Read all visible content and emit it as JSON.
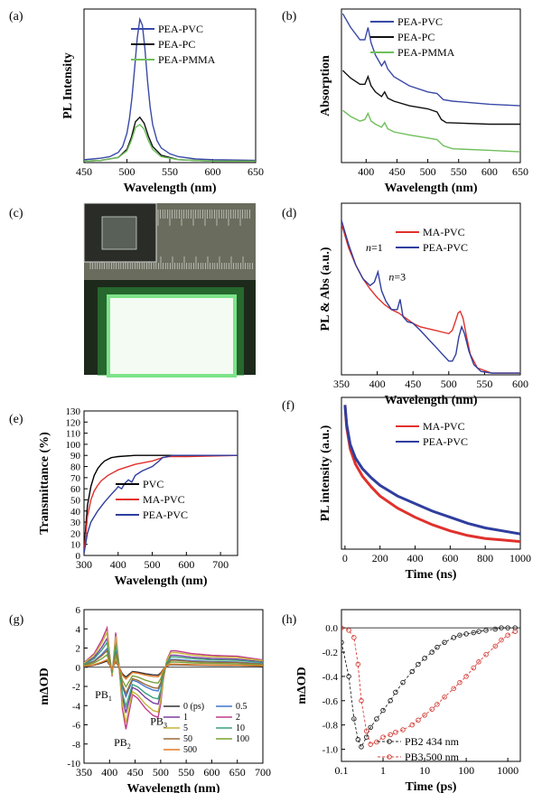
{
  "chart_data": [
    {
      "panel": "(a)",
      "type": "line",
      "xlabel": "Wavelength (nm)",
      "ylabel": "PL Intensity",
      "xlim": [
        450,
        650
      ],
      "ylim": [
        0,
        1.05
      ],
      "xticks": [
        450,
        500,
        550,
        600,
        650
      ],
      "series": [
        {
          "name": "PEA-PVC",
          "color": "#3a4aa6",
          "x": [
            450,
            460,
            470,
            480,
            490,
            495,
            500,
            503,
            506,
            509,
            512,
            515,
            518,
            521,
            524,
            527,
            530,
            535,
            540,
            550,
            560,
            580,
            600,
            650
          ],
          "y": [
            0.02,
            0.025,
            0.03,
            0.04,
            0.07,
            0.11,
            0.2,
            0.3,
            0.45,
            0.65,
            0.85,
            0.98,
            0.94,
            0.78,
            0.56,
            0.38,
            0.26,
            0.15,
            0.1,
            0.06,
            0.04,
            0.025,
            0.02,
            0.015
          ]
        },
        {
          "name": "PEA-PC",
          "color": "#111111",
          "x": [
            450,
            470,
            490,
            500,
            505,
            510,
            515,
            520,
            525,
            530,
            540,
            560,
            600,
            650
          ],
          "y": [
            0.01,
            0.015,
            0.035,
            0.09,
            0.17,
            0.28,
            0.31,
            0.27,
            0.18,
            0.11,
            0.05,
            0.02,
            0.01,
            0.01
          ]
        },
        {
          "name": "PEA-PMMA",
          "color": "#6fbf5a",
          "x": [
            450,
            470,
            490,
            500,
            505,
            510,
            515,
            520,
            525,
            530,
            540,
            560,
            600,
            650
          ],
          "y": [
            0.01,
            0.015,
            0.035,
            0.08,
            0.15,
            0.24,
            0.26,
            0.23,
            0.15,
            0.09,
            0.04,
            0.02,
            0.01,
            0.01
          ]
        }
      ]
    },
    {
      "panel": "(b)",
      "type": "line",
      "xlabel": "Wavelength (nm)",
      "ylabel": "Absorption",
      "xlim": [
        360,
        650
      ],
      "ylim": [
        0,
        1
      ],
      "xticks": [
        400,
        450,
        500,
        550,
        600,
        650
      ],
      "series": [
        {
          "name": "PEA-PVC",
          "color": "#3a4aa6",
          "x": [
            362,
            375,
            390,
            398,
            403,
            408,
            415,
            425,
            430,
            435,
            445,
            470,
            500,
            515,
            525,
            540,
            600,
            650
          ],
          "y": [
            0.97,
            0.88,
            0.8,
            0.8,
            0.88,
            0.78,
            0.7,
            0.63,
            0.66,
            0.61,
            0.56,
            0.5,
            0.46,
            0.45,
            0.41,
            0.4,
            0.38,
            0.37
          ]
        },
        {
          "name": "PEA-PC",
          "color": "#111111",
          "x": [
            362,
            375,
            390,
            398,
            403,
            408,
            415,
            425,
            430,
            435,
            445,
            470,
            500,
            515,
            522,
            530,
            600,
            650
          ],
          "y": [
            0.6,
            0.55,
            0.51,
            0.51,
            0.56,
            0.5,
            0.46,
            0.43,
            0.46,
            0.42,
            0.4,
            0.37,
            0.35,
            0.33,
            0.28,
            0.26,
            0.25,
            0.25
          ]
        },
        {
          "name": "PEA-PMMA",
          "color": "#6fbf5a",
          "x": [
            362,
            375,
            390,
            398,
            403,
            408,
            415,
            425,
            430,
            435,
            445,
            470,
            500,
            515,
            525,
            540,
            600,
            650
          ],
          "y": [
            0.34,
            0.3,
            0.27,
            0.28,
            0.32,
            0.27,
            0.25,
            0.23,
            0.26,
            0.22,
            0.2,
            0.18,
            0.16,
            0.15,
            0.11,
            0.09,
            0.08,
            0.07
          ]
        }
      ]
    },
    {
      "panel": "(d)",
      "type": "line",
      "xlabel": "Wavelength (nm)",
      "ylabel": "PL & Abs (a.u.)",
      "xlim": [
        350,
        600
      ],
      "ylim": [
        0,
        1
      ],
      "xticks": [
        350,
        400,
        450,
        500,
        550,
        600
      ],
      "annotations": [
        {
          "text": "n=1",
          "x": 396,
          "y": 0.72
        },
        {
          "text": "n=3",
          "x": 428,
          "y": 0.55
        }
      ],
      "series": [
        {
          "name": "MA-PVC",
          "color": "#e0312c",
          "x": [
            350,
            360,
            370,
            380,
            390,
            400,
            410,
            420,
            430,
            440,
            450,
            460,
            470,
            480,
            490,
            500,
            505,
            510,
            513,
            516,
            520,
            525,
            530,
            540,
            560,
            600
          ],
          "y": [
            0.88,
            0.74,
            0.64,
            0.56,
            0.5,
            0.45,
            0.41,
            0.38,
            0.36,
            0.33,
            0.3,
            0.28,
            0.27,
            0.26,
            0.25,
            0.24,
            0.26,
            0.32,
            0.36,
            0.37,
            0.33,
            0.22,
            0.12,
            0.04,
            0.01,
            0.01
          ]
        },
        {
          "name": "PEA-PVC",
          "color": "#2f3e9e",
          "x": [
            350,
            360,
            370,
            380,
            390,
            396,
            401,
            406,
            412,
            420,
            428,
            432,
            436,
            442,
            450,
            460,
            480,
            500,
            505,
            510,
            514,
            518,
            522,
            528,
            535,
            545,
            560,
            600
          ],
          "y": [
            0.9,
            0.76,
            0.64,
            0.56,
            0.52,
            0.54,
            0.6,
            0.49,
            0.43,
            0.38,
            0.38,
            0.44,
            0.34,
            0.31,
            0.3,
            0.26,
            0.17,
            0.08,
            0.08,
            0.12,
            0.22,
            0.28,
            0.24,
            0.14,
            0.06,
            0.02,
            0.01,
            0.01
          ]
        }
      ]
    },
    {
      "panel": "(e)",
      "type": "line",
      "xlabel": "Wavelength (nm)",
      "ylabel": "Transmittance (%)",
      "xlim": [
        300,
        750
      ],
      "ylim": [
        0,
        130
      ],
      "yticks": [
        0,
        10,
        20,
        30,
        40,
        50,
        60,
        70,
        80,
        90,
        100,
        110,
        120,
        130
      ],
      "xticks": [
        300,
        400,
        500,
        600,
        700
      ],
      "series": [
        {
          "name": "PVC",
          "color": "#000000",
          "x": [
            300,
            305,
            310,
            320,
            330,
            340,
            350,
            360,
            380,
            400,
            450,
            500,
            550,
            750
          ],
          "y": [
            2,
            25,
            45,
            62,
            72,
            78,
            82,
            85,
            88,
            89,
            90,
            90,
            90,
            90
          ]
        },
        {
          "name": "MA-PVC",
          "color": "#e0312c",
          "x": [
            300,
            310,
            320,
            330,
            340,
            350,
            370,
            400,
            450,
            500,
            530,
            550,
            600,
            750
          ],
          "y": [
            2,
            35,
            50,
            58,
            63,
            67,
            72,
            77,
            82,
            85,
            88,
            89,
            89,
            90
          ]
        },
        {
          "name": "PEA-PVC",
          "color": "#2f3e9e",
          "x": [
            300,
            310,
            320,
            340,
            360,
            380,
            395,
            400,
            410,
            420,
            430,
            440,
            450,
            470,
            500,
            520,
            530,
            545,
            560,
            750
          ],
          "y": [
            2,
            20,
            30,
            40,
            48,
            55,
            60,
            62,
            60,
            65,
            68,
            66,
            72,
            76,
            80,
            85,
            88,
            89,
            90,
            90
          ]
        }
      ]
    },
    {
      "panel": "(f)",
      "type": "line",
      "xlabel": "Time (ns)",
      "ylabel": "PL intensity (a.u.)",
      "xlim": [
        -20,
        1000
      ],
      "ylim": [
        0,
        1
      ],
      "xticks": [
        0,
        200,
        400,
        600,
        800,
        1000
      ],
      "series": [
        {
          "name": "MA-PVC",
          "color": "#e0312c",
          "x": [
            0,
            10,
            30,
            60,
            100,
            150,
            200,
            300,
            400,
            500,
            600,
            700,
            800,
            900,
            1000
          ],
          "y": [
            0.95,
            0.8,
            0.66,
            0.56,
            0.48,
            0.41,
            0.35,
            0.27,
            0.21,
            0.16,
            0.12,
            0.09,
            0.07,
            0.06,
            0.05
          ]
        },
        {
          "name": "PEA-PVC",
          "color": "#2f3e9e",
          "x": [
            0,
            10,
            30,
            60,
            100,
            150,
            200,
            300,
            400,
            500,
            600,
            700,
            800,
            900,
            1000
          ],
          "y": [
            0.95,
            0.82,
            0.69,
            0.6,
            0.53,
            0.47,
            0.42,
            0.35,
            0.3,
            0.25,
            0.21,
            0.17,
            0.14,
            0.12,
            0.1
          ]
        }
      ]
    },
    {
      "panel": "(g)",
      "type": "line",
      "xlabel": "Wavelength (nm)",
      "ylabel": "mΔOD",
      "xlim": [
        350,
        700
      ],
      "ylim": [
        -10,
        6
      ],
      "xticks": [
        350,
        400,
        450,
        500,
        550,
        600,
        650,
        700
      ],
      "yticks": [
        -10,
        -8,
        -6,
        -4,
        -2,
        0,
        2,
        4,
        6
      ],
      "annotations": [
        {
          "text": "PB1",
          "x": 388,
          "y": -3.2
        },
        {
          "text": "PB2",
          "x": 425,
          "y": -8.2
        },
        {
          "text": "PB3",
          "x": 496,
          "y": -6.0
        }
      ],
      "legend": [
        "0 (ps)",
        "0.5",
        "1",
        "2",
        "5",
        "10",
        "50",
        "100",
        "500"
      ],
      "series": [
        {
          "name": "0 (ps)",
          "color": "#333333",
          "scale": 0.15
        },
        {
          "name": "0.5",
          "color": "#4477cc",
          "scale": 0.45
        },
        {
          "name": "1",
          "color": "#7a3fa0",
          "scale": 0.7
        },
        {
          "name": "2",
          "color": "#c03a8a",
          "scale": 0.95
        },
        {
          "name": "5",
          "color": "#c8b43a",
          "scale": 0.85
        },
        {
          "name": "10",
          "color": "#3aa07a",
          "scale": 0.6
        },
        {
          "name": "50",
          "color": "#9a6a3a",
          "scale": 0.4
        },
        {
          "name": "100",
          "color": "#7aa03a",
          "scale": 0.3
        },
        {
          "name": "500",
          "color": "#e07a2a",
          "scale": 0.18
        }
      ],
      "base_shape": {
        "x": [
          350,
          370,
          385,
          395,
          400,
          405,
          412,
          418,
          425,
          432,
          438,
          445,
          455,
          470,
          485,
          495,
          500,
          505,
          512,
          520,
          530,
          560,
          600,
          650,
          700
        ],
        "y": [
          0.5,
          1.5,
          3.0,
          4.3,
          1.5,
          -1.0,
          3.8,
          0.5,
          -4.5,
          -6.8,
          -5.0,
          -3.0,
          -3.4,
          -4.5,
          -5.3,
          -5.5,
          -4.0,
          -1.5,
          0.8,
          1.8,
          1.8,
          1.5,
          1.3,
          1.2,
          0.8
        ]
      }
    },
    {
      "panel": "(h)",
      "type": "scatter",
      "xlabel": "Time (ps)",
      "ylabel": "mΔOD",
      "xscale": "log",
      "xlim": [
        0.1,
        2000
      ],
      "ylim": [
        -1.1,
        0.15
      ],
      "xticks": [
        0.1,
        1,
        10,
        100,
        1000
      ],
      "yticks": [
        -1.0,
        -0.8,
        -0.6,
        -0.4,
        -0.2,
        0.0
      ],
      "series": [
        {
          "name": "PB2 434 nm",
          "color": "#222222",
          "x": [
            0.1,
            0.15,
            0.2,
            0.25,
            0.3,
            0.4,
            0.5,
            0.7,
            1,
            1.5,
            2,
            3,
            5,
            7,
            10,
            15,
            20,
            30,
            50,
            70,
            100,
            150,
            200,
            300,
            500,
            700,
            1000,
            1500
          ],
          "y": [
            -0.12,
            -0.4,
            -0.75,
            -0.92,
            -0.98,
            -0.9,
            -0.82,
            -0.75,
            -0.68,
            -0.6,
            -0.53,
            -0.45,
            -0.36,
            -0.3,
            -0.25,
            -0.2,
            -0.16,
            -0.12,
            -0.08,
            -0.06,
            -0.05,
            -0.04,
            -0.03,
            -0.02,
            -0.01,
            0.0,
            0.0,
            0.0
          ]
        },
        {
          "name": "PB3 500 nm",
          "color": "#d6403a",
          "x": [
            0.1,
            0.15,
            0.2,
            0.25,
            0.3,
            0.4,
            0.5,
            0.7,
            1,
            1.5,
            2,
            3,
            5,
            7,
            10,
            15,
            20,
            30,
            50,
            70,
            100,
            150,
            200,
            300,
            500,
            700,
            1000,
            1500
          ],
          "y": [
            0.0,
            -0.02,
            -0.08,
            -0.3,
            -0.6,
            -0.85,
            -0.96,
            -0.94,
            -0.9,
            -0.88,
            -0.86,
            -0.84,
            -0.8,
            -0.76,
            -0.72,
            -0.67,
            -0.63,
            -0.57,
            -0.5,
            -0.45,
            -0.4,
            -0.33,
            -0.28,
            -0.22,
            -0.15,
            -0.1,
            -0.06,
            -0.03
          ]
        }
      ]
    }
  ],
  "photo_panel": {
    "panel": "(c)"
  }
}
